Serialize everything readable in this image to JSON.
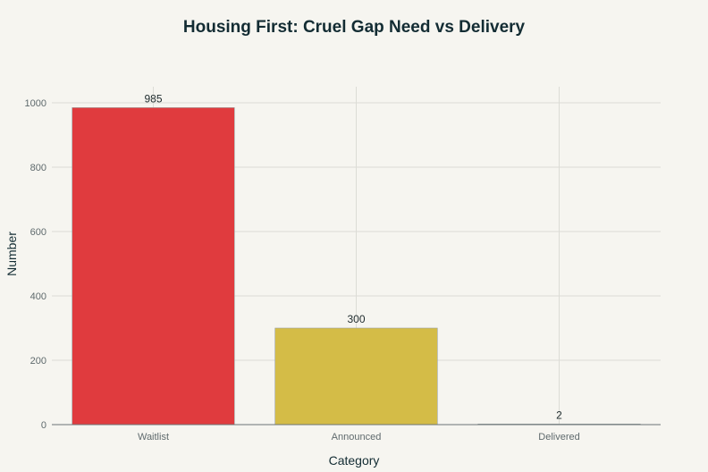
{
  "chart_data": {
    "type": "bar",
    "title": "Housing First: Cruel Gap Need vs Delivery",
    "xlabel": "Category",
    "ylabel": "Number",
    "categories": [
      "Waitlist",
      "Announced",
      "Delivered"
    ],
    "values": [
      985,
      300,
      2
    ],
    "data_labels": [
      "985",
      "300",
      "2"
    ],
    "bar_colors": [
      "#e03b3e",
      "#d4bc47",
      "#5b6c6d"
    ],
    "ylim": [
      0,
      1050
    ],
    "yticks": [
      0,
      200,
      400,
      600,
      800,
      1000
    ],
    "grid": true,
    "legend": "none"
  }
}
